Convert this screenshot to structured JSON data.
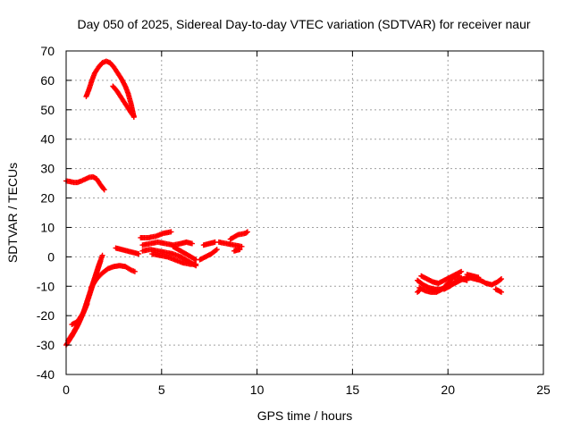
{
  "chart_data": {
    "type": "scatter",
    "title": "Day 050 of 2025, Sidereal Day-to-day VTEC variation (SDTVAR) for receiver naur",
    "xlabel": "GPS time / hours",
    "ylabel": "SDTVAR / TECUs",
    "xlim": [
      0,
      25
    ],
    "ylim": [
      -40,
      70
    ],
    "xticks": [
      0,
      5,
      10,
      15,
      20,
      25
    ],
    "yticks": [
      -40,
      -30,
      -20,
      -10,
      0,
      10,
      20,
      30,
      40,
      50,
      60,
      70
    ],
    "grid": true,
    "marker": "+",
    "series": [
      {
        "name": "SDTVAR",
        "color": "#ff0000",
        "segments": [
          [
            [
              1.05,
              54.5
            ],
            [
              1.2,
              57
            ],
            [
              1.35,
              60
            ],
            [
              1.5,
              62.5
            ],
            [
              1.7,
              64.5
            ],
            [
              1.9,
              66
            ],
            [
              2.1,
              66.5
            ],
            [
              2.3,
              66
            ],
            [
              2.5,
              64.5
            ],
            [
              2.7,
              62.5
            ],
            [
              2.9,
              60.5
            ],
            [
              3.1,
              58
            ],
            [
              3.25,
              55.5
            ],
            [
              3.4,
              52
            ],
            [
              3.5,
              49
            ],
            [
              3.55,
              47.5
            ]
          ],
          [
            [
              2.45,
              58
            ],
            [
              2.65,
              56.5
            ],
            [
              2.85,
              54.5
            ],
            [
              3.05,
              52.5
            ],
            [
              3.25,
              50.5
            ],
            [
              3.45,
              48.5
            ],
            [
              3.55,
              47.8
            ]
          ],
          [
            [
              0.0,
              25.8
            ],
            [
              0.2,
              25.6
            ],
            [
              0.4,
              25.3
            ],
            [
              0.6,
              25.3
            ],
            [
              0.8,
              25.8
            ],
            [
              1.0,
              26.4
            ],
            [
              1.2,
              27.0
            ],
            [
              1.4,
              27.2
            ],
            [
              1.6,
              26.5
            ],
            [
              1.8,
              24.5
            ],
            [
              2.0,
              22.8
            ]
          ],
          [
            [
              0.0,
              -30
            ],
            [
              0.3,
              -27
            ],
            [
              0.6,
              -23.5
            ],
            [
              0.9,
              -19
            ],
            [
              1.1,
              -15
            ],
            [
              1.3,
              -11
            ],
            [
              1.5,
              -7
            ],
            [
              1.7,
              -3
            ],
            [
              1.9,
              0.5
            ]
          ],
          [
            [
              0.1,
              -28.5
            ],
            [
              0.4,
              -25.5
            ],
            [
              0.7,
              -22
            ],
            [
              1.0,
              -17.5
            ],
            [
              1.2,
              -13.5
            ],
            [
              1.4,
              -9.5
            ],
            [
              1.6,
              -5.5
            ],
            [
              1.8,
              -1.5
            ]
          ],
          [
            [
              0.3,
              -23
            ],
            [
              0.6,
              -22
            ],
            [
              0.9,
              -19
            ],
            [
              1.1,
              -16
            ]
          ],
          [
            [
              1.3,
              -10.5
            ],
            [
              1.6,
              -7.5
            ],
            [
              1.9,
              -5.5
            ],
            [
              2.2,
              -4
            ],
            [
              2.5,
              -3.3
            ],
            [
              2.8,
              -3
            ],
            [
              3.1,
              -3.3
            ],
            [
              3.4,
              -4.5
            ],
            [
              3.6,
              -5
            ]
          ],
          [
            [
              2.6,
              3
            ],
            [
              2.9,
              2.5
            ],
            [
              3.2,
              2
            ],
            [
              3.5,
              1.5
            ],
            [
              3.8,
              1
            ]
          ],
          [
            [
              3.9,
              6.5
            ],
            [
              4.3,
              6.5
            ],
            [
              4.7,
              7
            ],
            [
              5.1,
              8
            ],
            [
              5.5,
              8.5
            ]
          ],
          [
            [
              4.0,
              4
            ],
            [
              4.4,
              4.5
            ],
            [
              4.8,
              5
            ],
            [
              5.2,
              4.5
            ],
            [
              5.6,
              4
            ],
            [
              6.0,
              4.5
            ],
            [
              6.3,
              5
            ],
            [
              6.6,
              4.5
            ]
          ],
          [
            [
              4.0,
              2
            ],
            [
              4.4,
              2.5
            ],
            [
              4.8,
              2
            ],
            [
              5.2,
              1.5
            ],
            [
              5.6,
              1
            ],
            [
              6.0,
              0
            ],
            [
              6.4,
              -1.5
            ],
            [
              6.8,
              -3
            ]
          ],
          [
            [
              4.5,
              1
            ],
            [
              4.9,
              0.5
            ],
            [
              5.3,
              0
            ],
            [
              5.7,
              -1
            ],
            [
              6.1,
              -2
            ],
            [
              6.5,
              -2.5
            ],
            [
              6.8,
              -2.5
            ]
          ],
          [
            [
              5.6,
              3.5
            ],
            [
              6.0,
              2
            ],
            [
              6.4,
              0.5
            ],
            [
              6.8,
              -1
            ]
          ],
          [
            [
              7.0,
              -1
            ],
            [
              7.3,
              0
            ],
            [
              7.6,
              1
            ],
            [
              7.9,
              2.5
            ]
          ],
          [
            [
              7.2,
              4
            ],
            [
              7.5,
              4.5
            ],
            [
              7.8,
              5
            ]
          ],
          [
            [
              8.0,
              5
            ],
            [
              8.4,
              4.5
            ],
            [
              8.8,
              4
            ],
            [
              9.2,
              3.5
            ]
          ],
          [
            [
              8.6,
              6
            ],
            [
              9.0,
              7.5
            ],
            [
              9.4,
              8
            ],
            [
              9.5,
              8.5
            ]
          ],
          [
            [
              8.8,
              2
            ],
            [
              9.1,
              2.5
            ]
          ],
          [
            [
              18.4,
              -8
            ],
            [
              18.7,
              -9.5
            ],
            [
              19.0,
              -10.5
            ],
            [
              19.3,
              -11
            ],
            [
              19.6,
              -11
            ],
            [
              19.9,
              -10.5
            ],
            [
              20.2,
              -9.5
            ],
            [
              20.5,
              -8.5
            ],
            [
              20.8,
              -7.5
            ],
            [
              21.1,
              -7
            ],
            [
              21.4,
              -7.5
            ],
            [
              21.7,
              -8
            ],
            [
              22.0,
              -9
            ],
            [
              22.3,
              -9.5
            ],
            [
              22.6,
              -8.5
            ],
            [
              22.8,
              -7.5
            ]
          ],
          [
            [
              18.5,
              -10.5
            ],
            [
              18.8,
              -11.5
            ],
            [
              19.1,
              -12
            ],
            [
              19.4,
              -12
            ],
            [
              19.7,
              -11
            ],
            [
              20.0,
              -9
            ],
            [
              20.3,
              -7
            ],
            [
              20.6,
              -6.5
            ]
          ],
          [
            [
              18.6,
              -6.5
            ],
            [
              18.9,
              -7.5
            ],
            [
              19.2,
              -8.5
            ],
            [
              19.5,
              -9
            ],
            [
              19.8,
              -8
            ],
            [
              20.1,
              -7
            ],
            [
              20.4,
              -6
            ],
            [
              20.7,
              -5
            ]
          ],
          [
            [
              19.8,
              -11
            ],
            [
              20.1,
              -10
            ],
            [
              20.4,
              -8.5
            ],
            [
              20.7,
              -7.5
            ],
            [
              21.0,
              -8
            ]
          ],
          [
            [
              21.0,
              -6
            ],
            [
              21.3,
              -6.5
            ],
            [
              21.6,
              -7
            ]
          ],
          [
            [
              22.5,
              -11
            ],
            [
              22.8,
              -12
            ]
          ],
          [
            [
              18.4,
              -12
            ],
            [
              18.5,
              -11.5
            ]
          ]
        ]
      }
    ]
  },
  "colors": {
    "series": "#ff0000",
    "grid": "#a0a0a0",
    "axis": "#000000",
    "background": "#ffffff"
  }
}
